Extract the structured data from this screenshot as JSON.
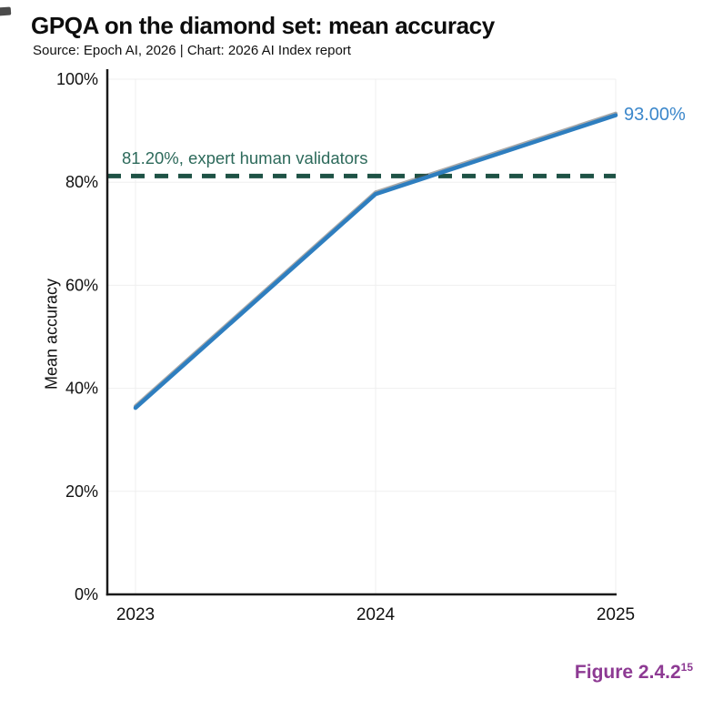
{
  "header": {
    "title": "GPQA on the diamond set: mean accuracy",
    "subtitle": "Source: Epoch AI, 2026 | Chart: 2026 AI Index report"
  },
  "figure_caption": {
    "label": "Figure 2.4.2",
    "superscript": "15",
    "color": "#8d3a93"
  },
  "chart_data": {
    "type": "line",
    "title": "GPQA on the diamond set: mean accuracy",
    "xlabel": "",
    "ylabel": "Mean accuracy",
    "categories": [
      "2023",
      "2024",
      "2025"
    ],
    "series": [
      {
        "name": "Mean accuracy",
        "values": [
          36.2,
          77.7,
          93.0
        ]
      }
    ],
    "end_label": "93.00%",
    "threshold": {
      "value": 81.2,
      "label": "81.20%, expert human validators"
    },
    "ylim": [
      0,
      100
    ],
    "yticks": [
      0,
      20,
      40,
      60,
      80,
      100
    ],
    "ytick_labels": [
      "0%",
      "20%",
      "40%",
      "60%",
      "80%",
      "100%"
    ],
    "grid": true,
    "legend": "none",
    "colors": {
      "series": "#2e7ebf",
      "series_label": "#3b87cb",
      "threshold": "#1e5245",
      "threshold_label": "#2d6a5b",
      "grid": "#efefef",
      "axis": "#1a1a1a",
      "text": "#111111"
    }
  }
}
